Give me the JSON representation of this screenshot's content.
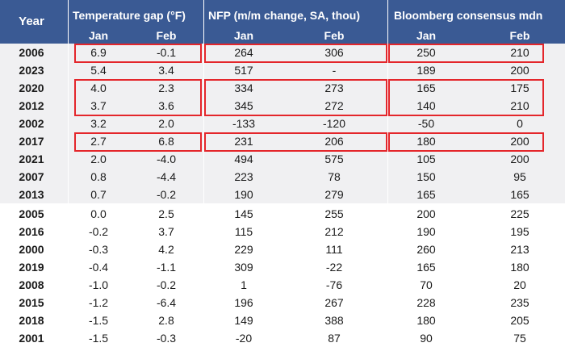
{
  "header": {
    "year": "Year",
    "groups": [
      {
        "title": "Temperature gap (°F)",
        "sub": [
          "Jan",
          "Feb"
        ]
      },
      {
        "title": "NFP (m/m change, SA, thou)",
        "sub": [
          "Jan",
          "Feb"
        ]
      },
      {
        "title": "Bloomberg consensus mdn",
        "sub": [
          "Jan",
          "Feb"
        ]
      }
    ]
  },
  "rows": [
    {
      "year": "2006",
      "vals": [
        "6.9",
        "-0.1",
        "264",
        "306",
        "250",
        "210"
      ]
    },
    {
      "year": "2023",
      "vals": [
        "5.4",
        "3.4",
        "517",
        "-",
        "189",
        "200"
      ]
    },
    {
      "year": "2020",
      "vals": [
        "4.0",
        "2.3",
        "334",
        "273",
        "165",
        "175"
      ]
    },
    {
      "year": "2012",
      "vals": [
        "3.7",
        "3.6",
        "345",
        "272",
        "140",
        "210"
      ]
    },
    {
      "year": "2002",
      "vals": [
        "3.2",
        "2.0",
        "-133",
        "-120",
        "-50",
        "0"
      ]
    },
    {
      "year": "2017",
      "vals": [
        "2.7",
        "6.8",
        "231",
        "206",
        "180",
        "200"
      ]
    },
    {
      "year": "2021",
      "vals": [
        "2.0",
        "-4.0",
        "494",
        "575",
        "105",
        "200"
      ]
    },
    {
      "year": "2007",
      "vals": [
        "0.8",
        "-4.4",
        "223",
        "78",
        "150",
        "95"
      ]
    },
    {
      "year": "2013",
      "vals": [
        "0.7",
        "-0.2",
        "190",
        "279",
        "165",
        "165"
      ]
    },
    {
      "year": "2005",
      "vals": [
        "0.0",
        "2.5",
        "145",
        "255",
        "200",
        "225"
      ]
    },
    {
      "year": "2016",
      "vals": [
        "-0.2",
        "3.7",
        "115",
        "212",
        "190",
        "195"
      ]
    },
    {
      "year": "2000",
      "vals": [
        "-0.3",
        "4.2",
        "229",
        "111",
        "260",
        "213"
      ]
    },
    {
      "year": "2019",
      "vals": [
        "-0.4",
        "-1.1",
        "309",
        "-22",
        "165",
        "180"
      ]
    },
    {
      "year": "2008",
      "vals": [
        "-1.0",
        "-0.2",
        "1",
        "-76",
        "70",
        "20"
      ]
    },
    {
      "year": "2015",
      "vals": [
        "-1.2",
        "-6.4",
        "196",
        "267",
        "228",
        "235"
      ]
    },
    {
      "year": "2018",
      "vals": [
        "-1.5",
        "2.8",
        "149",
        "388",
        "180",
        "205"
      ]
    },
    {
      "year": "2001",
      "vals": [
        "-1.5",
        "-0.3",
        "-20",
        "87",
        "90",
        "75"
      ]
    }
  ],
  "colors": {
    "header_bg": "#3a5a94",
    "shade": "#f0f0f2",
    "highlight": "#e4262b"
  }
}
